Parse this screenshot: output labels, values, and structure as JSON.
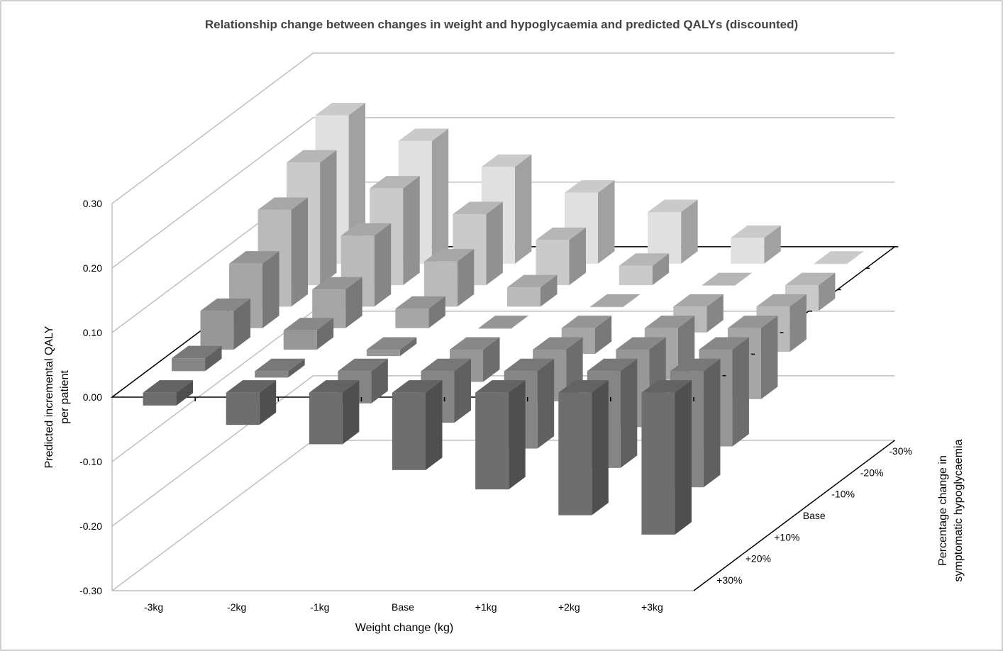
{
  "chart_data": {
    "type": "bar",
    "subtype": "3d-bar",
    "title": "Relationship change between changes in weight and hypoglycaemia and predicted QALYs (discounted)",
    "xlabel": "Weight change (kg)",
    "ylabel_line1": "Predicted incremental QALY",
    "ylabel_line2": "per patient",
    "zlabel_line1": "Percentage change in",
    "zlabel_line2": "symptomatic hypoglycaemia",
    "categories": [
      "-3kg",
      "-2kg",
      "-1kg",
      "Base",
      "+1kg",
      "+2kg",
      "+3kg"
    ],
    "y_ticks": [
      "0.30",
      "0.20",
      "0.10",
      "0.00",
      "-0.10",
      "-0.20",
      "-0.30"
    ],
    "ylim": [
      -0.3,
      0.3
    ],
    "grid": true,
    "series": [
      {
        "name": "+30%",
        "values": [
          -0.02,
          -0.05,
          -0.08,
          -0.12,
          -0.15,
          -0.19,
          -0.22
        ]
      },
      {
        "name": "+20%",
        "values": [
          0.02,
          -0.01,
          -0.05,
          -0.08,
          -0.12,
          -0.15,
          -0.18
        ]
      },
      {
        "name": "+10%",
        "values": [
          0.06,
          0.03,
          -0.01,
          -0.05,
          -0.08,
          -0.12,
          -0.15
        ]
      },
      {
        "name": "Base",
        "values": [
          0.1,
          0.06,
          0.03,
          0.0,
          -0.04,
          -0.08,
          -0.11
        ]
      },
      {
        "name": "-10%",
        "values": [
          0.15,
          0.11,
          0.07,
          0.03,
          0.0,
          -0.04,
          -0.07
        ]
      },
      {
        "name": "-20%",
        "values": [
          0.19,
          0.15,
          0.11,
          0.07,
          0.03,
          0.0,
          -0.04
        ]
      },
      {
        "name": "-30%",
        "values": [
          0.23,
          0.19,
          0.15,
          0.11,
          0.08,
          0.04,
          0.0
        ]
      }
    ]
  }
}
